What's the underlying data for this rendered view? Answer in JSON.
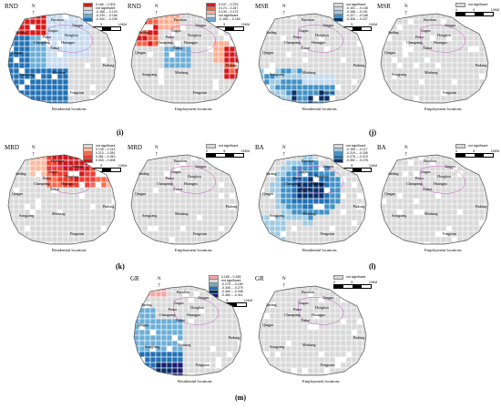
{
  "panels": [
    {
      "id": "i-res",
      "title": "RND",
      "caption": "Residential locations",
      "legend": [
        {
          "label": "0.166 – 0.303",
          "color": "#d7191c"
        },
        {
          "label": "not significant",
          "color": "#d9d9d9"
        },
        {
          "label": "-0.166 – -0.124",
          "color": "#c6dbef"
        },
        {
          "label": "-0.239 – -0.166",
          "color": "#6baed6"
        },
        {
          "label": "-0.340 – -0.239",
          "color": "#2171b5"
        }
      ],
      "scale": [
        "0",
        "5",
        "10KM"
      ],
      "pattern": "rnd_res"
    },
    {
      "id": "i-emp",
      "title": "RND",
      "caption": "Employment locations",
      "legend": [
        {
          "label": "0.247 – 0.375",
          "color": "#d7191c"
        },
        {
          "label": "0.174 – 0.247",
          "color": "#ef6548"
        },
        {
          "label": "0.130 – 0.174",
          "color": "#fcae91"
        },
        {
          "label": "not significant",
          "color": "#d9d9d9"
        },
        {
          "label": "-0.156 – -0.160",
          "color": "#6baed6"
        }
      ],
      "scale": [
        "0",
        "5",
        "10KM"
      ],
      "pattern": "rnd_emp"
    },
    {
      "id": "j-res",
      "title": "MSR",
      "caption": "Residential locations",
      "legend": [
        {
          "label": "not significant",
          "color": "#d9d9d9"
        },
        {
          "label": "-0.151 – -0.148",
          "color": "#c6dbef"
        },
        {
          "label": "-0.168 – -0.151",
          "color": "#9ecae1"
        },
        {
          "label": "-0.227 – -0.168",
          "color": "#4292c6"
        },
        {
          "label": "-0.306 – -0.227",
          "color": "#08306b"
        }
      ],
      "scale": [
        "0",
        "5",
        "10KM"
      ],
      "pattern": "msr_res"
    },
    {
      "id": "j-emp",
      "title": "MSR",
      "caption": "Employment locations",
      "legend": [
        {
          "label": "not significant",
          "color": "#d9d9d9"
        }
      ],
      "scale": [
        "0",
        "5",
        "10KM"
      ],
      "pattern": "none"
    },
    {
      "id": "k-res",
      "title": "MRD",
      "caption": "Residential locations",
      "legend": [
        {
          "label": "not significant",
          "color": "#d9d9d9"
        },
        {
          "label": "0.135 – 0.213",
          "color": "#fcbba1"
        },
        {
          "label": "0.213 – 0.281",
          "color": "#fb6a4a"
        },
        {
          "label": "0.281 – 0.343",
          "color": "#ef3b2c"
        },
        {
          "label": "0.343 – 0.408",
          "color": "#cb181d"
        }
      ],
      "scale": [
        "0",
        "5",
        "10KM"
      ],
      "pattern": "mrd_res"
    },
    {
      "id": "k-emp",
      "title": "MRD",
      "caption": "Employment locations",
      "legend": [
        {
          "label": "not significant",
          "color": "#d9d9d9"
        }
      ],
      "scale": [
        "0",
        "5",
        "10KM"
      ],
      "pattern": "none"
    },
    {
      "id": "l-res",
      "title": "BA",
      "caption": "Residential locations",
      "legend": [
        {
          "label": "not significant",
          "color": "#d9d9d9"
        },
        {
          "label": "-0.155 – -0.117",
          "color": "#9ecae1"
        },
        {
          "label": "-0.219 – -0.155",
          "color": "#4292c6"
        },
        {
          "label": "-0.278 – -0.219",
          "color": "#2171b5"
        },
        {
          "label": "-0.352 – -0.278",
          "color": "#08306b"
        }
      ],
      "scale": [
        "0",
        "5",
        "10KM"
      ],
      "pattern": "ba_res"
    },
    {
      "id": "l-emp",
      "title": "BA",
      "caption": "Employment locations",
      "legend": [
        {
          "label": "not significant",
          "color": "#d9d9d9"
        }
      ],
      "scale": [
        "0",
        "5",
        "10KM"
      ],
      "pattern": "none"
    },
    {
      "id": "m-res",
      "title": "GR",
      "caption": "Residential locations",
      "legend": [
        {
          "label": "0.165 – 0.185",
          "color": "#f4a6a6"
        },
        {
          "label": "not significant",
          "color": "#d9d9d9"
        },
        {
          "label": "-0.279 – -0.150",
          "color": "#6baed6"
        },
        {
          "label": "-0.346 – -0.279",
          "color": "#2171b5"
        },
        {
          "label": "-0.460 – -0.346",
          "color": "#08306b"
        },
        {
          "label": "-0.460 – -0.411",
          "color": "#1a1a6e"
        }
      ],
      "scale": [
        "0",
        "5",
        "10KM"
      ],
      "pattern": "gr_res"
    },
    {
      "id": "m-emp",
      "title": "GR",
      "caption": "Employment locations",
      "legend": [
        {
          "label": "not significant",
          "color": "#d9d9d9"
        }
      ],
      "scale": [
        "0",
        "5",
        "10KM"
      ],
      "pattern": "none"
    }
  ],
  "panel_labels": [
    "(i)",
    "(j)",
    "(k)",
    "(l)",
    "(m)"
  ],
  "districts": [
    "Baoshan",
    "Yangpu",
    "Jiading",
    "Jingan",
    "Putuo",
    "Hongkou",
    "Changning",
    "Huangpu",
    "Xuhui",
    "Qingpu",
    "Pudong",
    "Songjiang",
    "Minhang",
    "Fengxian"
  ],
  "north_label": "N"
}
